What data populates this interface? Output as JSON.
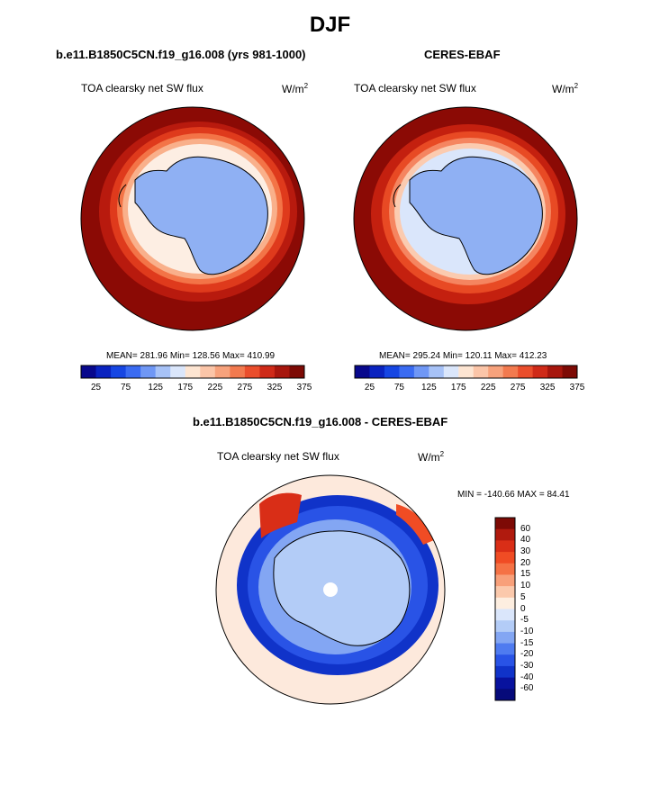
{
  "title": "DJF",
  "panels": [
    {
      "heading": "b.e11.B1850C5CN.f19_g16.008 (yrs 981-1000)",
      "variable": "TOA clearsky net SW flux",
      "units_base": "W/m",
      "units_exp": "2",
      "stats": "MEAN= 281.96  Min= 128.56  Max= 410.99"
    },
    {
      "heading": "CERES-EBAF",
      "variable": "TOA clearsky net SW flux",
      "units_base": "W/m",
      "units_exp": "2",
      "stats": "MEAN= 295.24  Min= 120.11  Max= 412.23"
    }
  ],
  "top_colorbar": {
    "ticks": [
      "25",
      "75",
      "125",
      "175",
      "225",
      "275",
      "325",
      "375"
    ],
    "colors": [
      "#08088c",
      "#0a23c0",
      "#1646e3",
      "#3a6bf2",
      "#6f97f5",
      "#a7c2f7",
      "#dae6fb",
      "#fde5d2",
      "#fbc5a8",
      "#f7a27c",
      "#f27a4f",
      "#ea4e2c",
      "#cf2a18",
      "#a7160d",
      "#7d0a05"
    ]
  },
  "diff": {
    "heading": "b.e11.B1850C5CN.f19_g16.008 - CERES-EBAF",
    "variable": "TOA clearsky net SW flux",
    "units_base": "W/m",
    "units_exp": "2",
    "stats": "MIN = -140.66 MAX =  84.41",
    "colorbar": {
      "labels": [
        "60",
        "40",
        "30",
        "20",
        "15",
        "10",
        "5",
        "0",
        "-5",
        "-10",
        "-15",
        "-20",
        "-30",
        "-40",
        "-60"
      ],
      "colors": [
        "#7d0a05",
        "#b01a0e",
        "#d92e17",
        "#f04c24",
        "#f57245",
        "#f8a07a",
        "#fbc9ac",
        "#fdeee0",
        "#dae6fb",
        "#b3ccf7",
        "#83a6f3",
        "#4f7bf0",
        "#2953e6",
        "#1033c9",
        "#08129e",
        "#060a7a"
      ]
    }
  },
  "colors": {
    "ocean_warm": "#8b0a05",
    "land_blue": "#8fb0f3"
  }
}
